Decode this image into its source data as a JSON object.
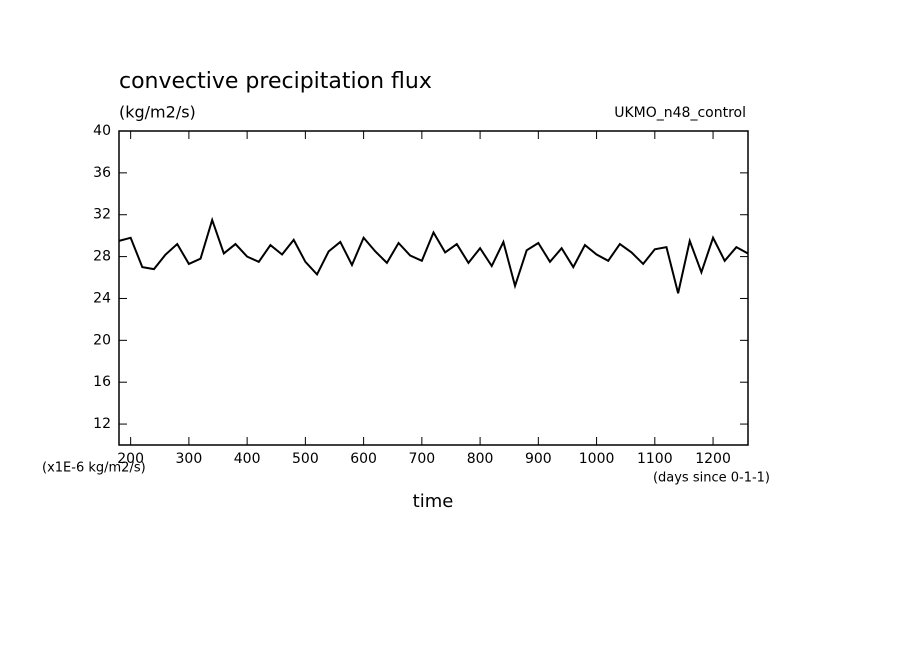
{
  "chart_data": {
    "type": "line",
    "title": "convective precipitation flux",
    "subtitle": "(kg/m2/s)",
    "annotation": "UKMO_n48_control",
    "y_unit_note": "(x1E-6 kg/m2/s)",
    "x_unit_note": "(days since 0-1-1)",
    "xlabel": "time",
    "x": [
      180,
      200,
      220,
      240,
      260,
      280,
      300,
      320,
      340,
      360,
      380,
      400,
      420,
      440,
      460,
      480,
      500,
      520,
      540,
      560,
      580,
      600,
      620,
      640,
      660,
      680,
      700,
      720,
      740,
      760,
      780,
      800,
      820,
      840,
      860,
      880,
      900,
      920,
      940,
      960,
      980,
      1000,
      1020,
      1040,
      1060,
      1080,
      1100,
      1120,
      1140,
      1160,
      1180,
      1200,
      1220,
      1240,
      1260
    ],
    "series": [
      {
        "name": "convective precipitation flux",
        "color": "#000000",
        "values": [
          29.5,
          29.8,
          27,
          26.8,
          28.2,
          29.2,
          27.3,
          27.8,
          31.5,
          28.3,
          29.2,
          28,
          27.5,
          29.1,
          28.2,
          29.6,
          27.5,
          26.3,
          28.5,
          29.4,
          27.2,
          29.8,
          28.5,
          27.4,
          29.3,
          28.1,
          27.6,
          30.3,
          28.4,
          29.2,
          27.4,
          28.8,
          27.1,
          29.4,
          25.2,
          28.6,
          29.3,
          27.5,
          28.8,
          27,
          29.1,
          28.2,
          27.6,
          29.2,
          28.4,
          27.3,
          28.7,
          28.9,
          24.5,
          29.5,
          26.5,
          29.8,
          27.6,
          28.9,
          28.3
        ]
      }
    ],
    "xlim": [
      180,
      1260
    ],
    "ylim": [
      10,
      40
    ],
    "xticks": [
      200,
      300,
      400,
      500,
      600,
      700,
      800,
      900,
      1000,
      1100,
      1200
    ],
    "yticks": [
      12,
      16,
      20,
      24,
      28,
      32,
      36,
      40
    ]
  }
}
